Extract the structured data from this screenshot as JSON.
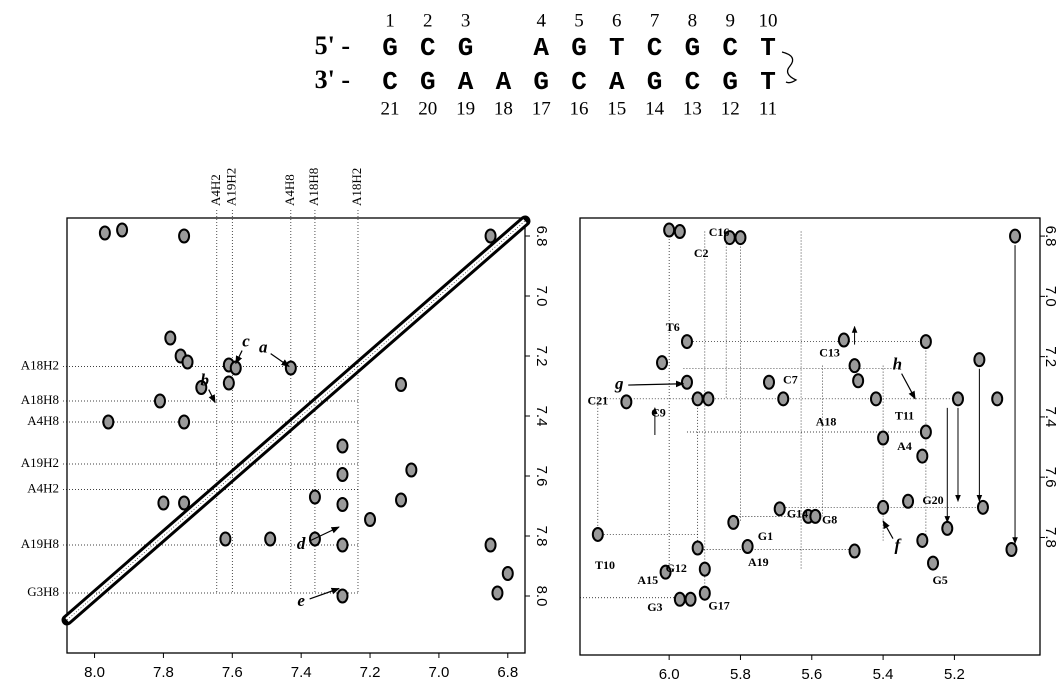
{
  "sequence": {
    "strand1": {
      "prefix": "5' -",
      "bases": [
        "G",
        "C",
        "G",
        null,
        "A",
        "G",
        "T",
        "C",
        "G",
        "C",
        "T"
      ],
      "numbers": [
        1,
        2,
        3,
        null,
        4,
        5,
        6,
        7,
        8,
        9,
        10
      ]
    },
    "strand2": {
      "prefix": "3' -",
      "bases": [
        "C",
        "G",
        "A",
        "A",
        "G",
        "C",
        "A",
        "G",
        "C",
        "G",
        "T"
      ],
      "numbers": [
        21,
        20,
        19,
        18,
        17,
        16,
        15,
        14,
        13,
        12,
        11
      ]
    }
  },
  "chart_data": [
    {
      "type": "scatter",
      "diagonal": true,
      "xlim": [
        8.08,
        6.75
      ],
      "ylim": [
        6.74,
        8.19
      ],
      "xticks": [
        {
          "value": 8,
          "label": "8.0"
        },
        7.8,
        7.6,
        7.4,
        7.2,
        {
          "value": 7,
          "label": "7.0"
        },
        6.8
      ],
      "yticks": [
        6.8,
        {
          "value": 7,
          "label": "7.0"
        },
        7.2,
        7.4,
        7.6,
        7.8,
        {
          "value": 8,
          "label": "8.0"
        }
      ],
      "vguides": [
        {
          "label": "A4H2",
          "value": 7.645
        },
        {
          "label": "A19H2",
          "value": 7.6
        },
        {
          "label": "A4H8",
          "value": 7.43
        },
        {
          "label": "A18H8",
          "value": 7.36
        },
        {
          "label": "A18H2",
          "value": 7.235
        }
      ],
      "hguides": [
        {
          "label": "A18H2",
          "value": 7.235
        },
        {
          "label": "A18H8",
          "value": 7.35
        },
        {
          "label": "A4H8",
          "value": 7.42
        },
        {
          "label": "A19H2",
          "value": 7.56
        },
        {
          "label": "A4H2",
          "value": 7.645
        },
        {
          "label": "A19H8",
          "value": 7.83
        },
        {
          "label": "G3H8",
          "value": 7.99
        }
      ],
      "x": [
        7.97,
        7.92,
        7.74,
        6.85,
        7.78,
        7.75,
        7.73,
        7.69,
        7.61,
        7.61,
        7.59,
        7.43,
        7.11,
        7.96,
        7.81,
        7.74,
        7.8,
        7.74,
        7.28,
        7.28,
        7.28,
        7.2,
        7.36,
        7.49,
        7.36,
        7.28,
        7.28,
        7.62,
        7.11,
        7.08,
        6.85,
        6.8,
        6.83
      ],
      "values": [
        6.79,
        6.78,
        6.8,
        6.8,
        7.14,
        7.2,
        7.22,
        7.305,
        7.29,
        7.23,
        7.24,
        7.24,
        7.295,
        7.42,
        7.35,
        7.42,
        7.69,
        7.69,
        7.5,
        7.595,
        7.695,
        7.745,
        7.67,
        7.81,
        7.81,
        7.83,
        8.0,
        7.81,
        7.68,
        7.58,
        7.83,
        7.925,
        7.99
      ],
      "annotations": [
        {
          "text": "a",
          "x": 7.51,
          "y": 7.175,
          "tx": 7.435,
          "ty": 7.235
        },
        {
          "text": "b",
          "x": 7.68,
          "y": 7.285,
          "tx": 7.65,
          "ty": 7.355
        },
        {
          "text": "c",
          "x": 7.56,
          "y": 7.155,
          "tx": 7.59,
          "ty": 7.225
        },
        {
          "text": "d",
          "x": 7.4,
          "y": 7.83,
          "tx": 7.29,
          "ty": 7.77
        },
        {
          "text": "e",
          "x": 7.4,
          "y": 8.02,
          "tx": 7.29,
          "ty": 7.975
        }
      ]
    },
    {
      "type": "scatter",
      "xlim": [
        6.25,
        4.96
      ],
      "ylim": [
        6.74,
        8.19
      ],
      "xticks": [
        {
          "value": 6,
          "label": "6.0"
        },
        5.8,
        5.6,
        5.4,
        5.2
      ],
      "yticks": [
        6.8,
        {
          "value": 7,
          "label": "7.0"
        },
        7.2,
        7.4,
        7.6,
        7.8
      ],
      "x": [
        6.0,
        5.97,
        5.83,
        5.8,
        5.95,
        6.02,
        5.95,
        5.92,
        5.89,
        6.12,
        5.72,
        5.68,
        5.51,
        5.48,
        5.47,
        5.42,
        5.4,
        5.28,
        5.28,
        5.29,
        5.19,
        5.08,
        5.13,
        5.03,
        6.2,
        5.92,
        5.82,
        5.78,
        6.01,
        5.97,
        5.94,
        5.9,
        5.9,
        5.61,
        5.59,
        5.69,
        5.48,
        5.4,
        5.33,
        5.29,
        5.26,
        5.22,
        5.12,
        5.04
      ],
      "values": [
        6.78,
        6.785,
        6.805,
        6.805,
        7.15,
        7.22,
        7.285,
        7.34,
        7.34,
        7.35,
        7.285,
        7.34,
        7.145,
        7.23,
        7.28,
        7.34,
        7.47,
        7.15,
        7.45,
        7.53,
        7.34,
        7.34,
        7.21,
        6.8,
        7.79,
        7.835,
        7.75,
        7.83,
        7.915,
        8.005,
        8.005,
        7.985,
        7.905,
        7.73,
        7.73,
        7.705,
        7.845,
        7.7,
        7.68,
        7.81,
        7.885,
        7.77,
        7.7,
        7.84
      ],
      "links": [
        [
          5.95,
          7.15,
          5.28,
          7.15
        ],
        [
          5.96,
          7.24,
          5.36,
          7.24
        ],
        [
          6.2,
          7.34,
          5.19,
          7.34
        ],
        [
          5.95,
          7.45,
          5.28,
          7.45
        ],
        [
          5.69,
          7.7,
          5.12,
          7.7
        ],
        [
          5.82,
          7.73,
          5.59,
          7.73
        ],
        [
          6.2,
          7.79,
          5.92,
          7.79
        ],
        [
          5.92,
          7.84,
          5.48,
          7.84
        ],
        [
          6.25,
          8.0,
          5.94,
          8.0
        ],
        [
          6.0,
          6.785,
          5.97,
          6.785
        ],
        [
          6.2,
          7.34,
          6.2,
          7.79
        ],
        [
          6.0,
          6.78,
          6.0,
          7.915
        ],
        [
          5.92,
          7.34,
          5.92,
          7.835
        ],
        [
          5.9,
          6.785,
          5.9,
          7.985
        ],
        [
          5.84,
          6.805,
          5.84,
          7.34
        ],
        [
          5.8,
          6.805,
          5.8,
          7.75
        ],
        [
          5.63,
          6.785,
          5.63,
          7.905
        ],
        [
          5.57,
          7.23,
          5.57,
          7.73
        ],
        [
          5.4,
          7.23,
          5.4,
          7.81
        ],
        [
          5.28,
          7.15,
          5.28,
          7.81
        ]
      ],
      "arrows": [
        [
          5.03,
          6.83,
          5.03,
          7.82
        ],
        [
          5.13,
          7.24,
          5.13,
          7.68
        ],
        [
          5.22,
          7.37,
          5.22,
          7.75
        ],
        [
          5.19,
          7.37,
          5.19,
          7.68
        ],
        [
          6.04,
          7.46,
          6.04,
          7.37
        ],
        [
          5.48,
          7.16,
          5.48,
          7.1
        ]
      ],
      "point_labels": [
        {
          "text": "C16",
          "x": 5.86,
          "y": 6.79
        },
        {
          "text": "C2",
          "x": 5.91,
          "y": 6.86
        },
        {
          "text": "T6",
          "x": 5.99,
          "y": 7.105
        },
        {
          "text": "C21",
          "x": 6.2,
          "y": 7.35
        },
        {
          "text": "C9",
          "x": 6.03,
          "y": 7.39
        },
        {
          "text": "C7",
          "x": 5.66,
          "y": 7.28
        },
        {
          "text": "C13",
          "x": 5.55,
          "y": 7.19
        },
        {
          "text": "A18",
          "x": 5.56,
          "y": 7.42
        },
        {
          "text": "T11",
          "x": 5.34,
          "y": 7.4
        },
        {
          "text": "A4",
          "x": 5.34,
          "y": 7.5
        },
        {
          "text": "G20",
          "x": 5.26,
          "y": 7.68
        },
        {
          "text": "G14",
          "x": 5.64,
          "y": 7.725
        },
        {
          "text": "G8",
          "x": 5.55,
          "y": 7.745
        },
        {
          "text": "G1",
          "x": 5.73,
          "y": 7.8
        },
        {
          "text": "A19",
          "x": 5.75,
          "y": 7.885
        },
        {
          "text": "G12",
          "x": 5.98,
          "y": 7.905
        },
        {
          "text": "T10",
          "x": 6.18,
          "y": 7.895
        },
        {
          "text": "A15",
          "x": 6.06,
          "y": 7.945
        },
        {
          "text": "G3",
          "x": 6.04,
          "y": 8.035
        },
        {
          "text": "G17",
          "x": 5.86,
          "y": 8.03
        },
        {
          "text": "G5",
          "x": 5.24,
          "y": 7.945
        }
      ],
      "annotations": [
        {
          "text": "g",
          "x": 6.14,
          "y": 7.295,
          "tx": 5.96,
          "ty": 7.29
        },
        {
          "text": "h",
          "x": 5.36,
          "y": 7.23,
          "tx": 5.31,
          "ty": 7.34
        },
        {
          "text": "f",
          "x": 5.36,
          "y": 7.83,
          "tx": 5.4,
          "ty": 7.745
        }
      ]
    }
  ]
}
